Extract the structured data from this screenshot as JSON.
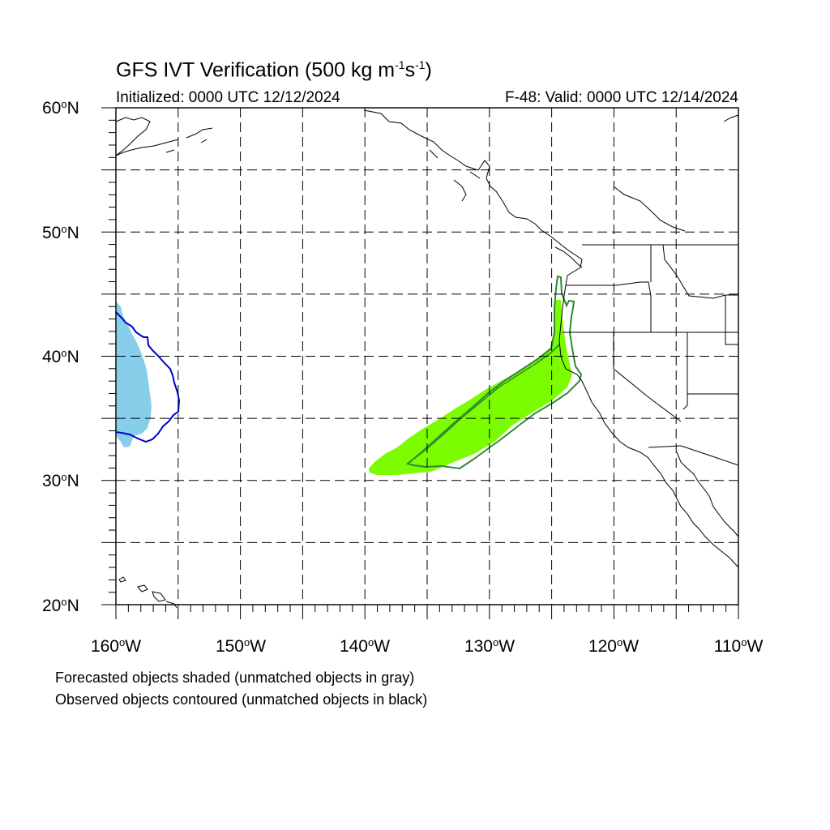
{
  "header": {
    "title_main": "GFS IVT Verification (500 kg m",
    "title_exp1": "-1",
    "title_mid": "s",
    "title_exp2": "-1",
    "title_end": ")",
    "initialized": "Initialized: 0000 UTC 12/12/2024",
    "valid": "F-48: Valid: 0000 UTC 12/14/2024"
  },
  "axes": {
    "lat_labels": [
      {
        "num": "60",
        "hem": "N"
      },
      {
        "num": "50",
        "hem": "N"
      },
      {
        "num": "40",
        "hem": "N"
      },
      {
        "num": "30",
        "hem": "N"
      },
      {
        "num": "20",
        "hem": "N"
      }
    ],
    "lon_labels": [
      {
        "num": "160",
        "hem": "W"
      },
      {
        "num": "150",
        "hem": "W"
      },
      {
        "num": "140",
        "hem": "W"
      },
      {
        "num": "130",
        "hem": "W"
      },
      {
        "num": "120",
        "hem": "W"
      },
      {
        "num": "110",
        "hem": "W"
      }
    ],
    "degree_symbol": "o"
  },
  "map": {
    "lon_range": [
      -160,
      -110
    ],
    "lat_range": [
      20,
      60
    ],
    "gridline_interval_deg": 5,
    "grid_style": "dashed",
    "colors": {
      "forecast_matched": "#7cfc00",
      "forecast_other": "#87ceeb",
      "observed_matched": "#2e8b2e",
      "observed_other": "#0000cd",
      "coastline": "#000000"
    }
  },
  "legend": {
    "line1": "Forecasted objects shaded (unmatched objects in gray)",
    "line2": "Observed objects contoured (unmatched objects in black)"
  }
}
